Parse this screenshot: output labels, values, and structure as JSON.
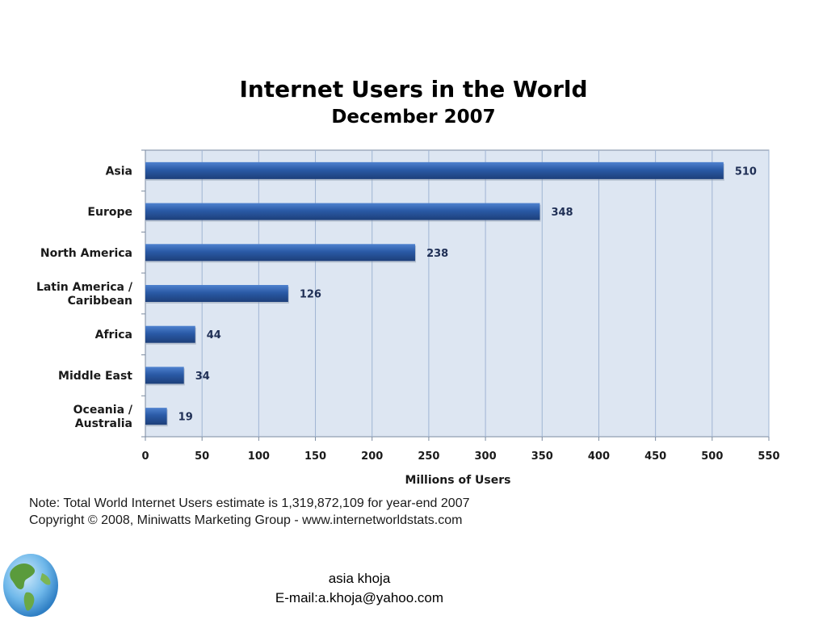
{
  "slide": {
    "footer_name": "asia khoja",
    "footer_email": "E-mail:a.khoja@yahoo.com",
    "note_line1": "Note: Total World Internet Users estimate is 1,319,872,109 for year-end 2007",
    "note_line2": "Copyright © 2008, Miniwatts Marketing Group - www.internetworldstats.com",
    "logo_icon": "globe-icon"
  },
  "chart_data": {
    "type": "bar",
    "orientation": "horizontal",
    "title": "Internet Users in the World",
    "subtitle": "December 2007",
    "xlabel": "Millions of Users",
    "ylabel": "",
    "xlim": [
      0,
      550
    ],
    "xticks": [
      0,
      50,
      100,
      150,
      200,
      250,
      300,
      350,
      400,
      450,
      500,
      550
    ],
    "grid": true,
    "categories": [
      [
        "Asia"
      ],
      [
        "Europe"
      ],
      [
        "North America"
      ],
      [
        "Latin America /",
        "Caribbean"
      ],
      [
        "Africa"
      ],
      [
        "Middle East"
      ],
      [
        "Oceania  /",
        "Australia"
      ]
    ],
    "values": [
      510,
      348,
      238,
      126,
      44,
      34,
      19
    ],
    "colors": {
      "bar": "#2a5aa6",
      "bar_light": "#4f82cf",
      "plot_bg": "#dde6f2",
      "grid": "#9fb4d3",
      "axis": "#7a8aa0"
    }
  }
}
